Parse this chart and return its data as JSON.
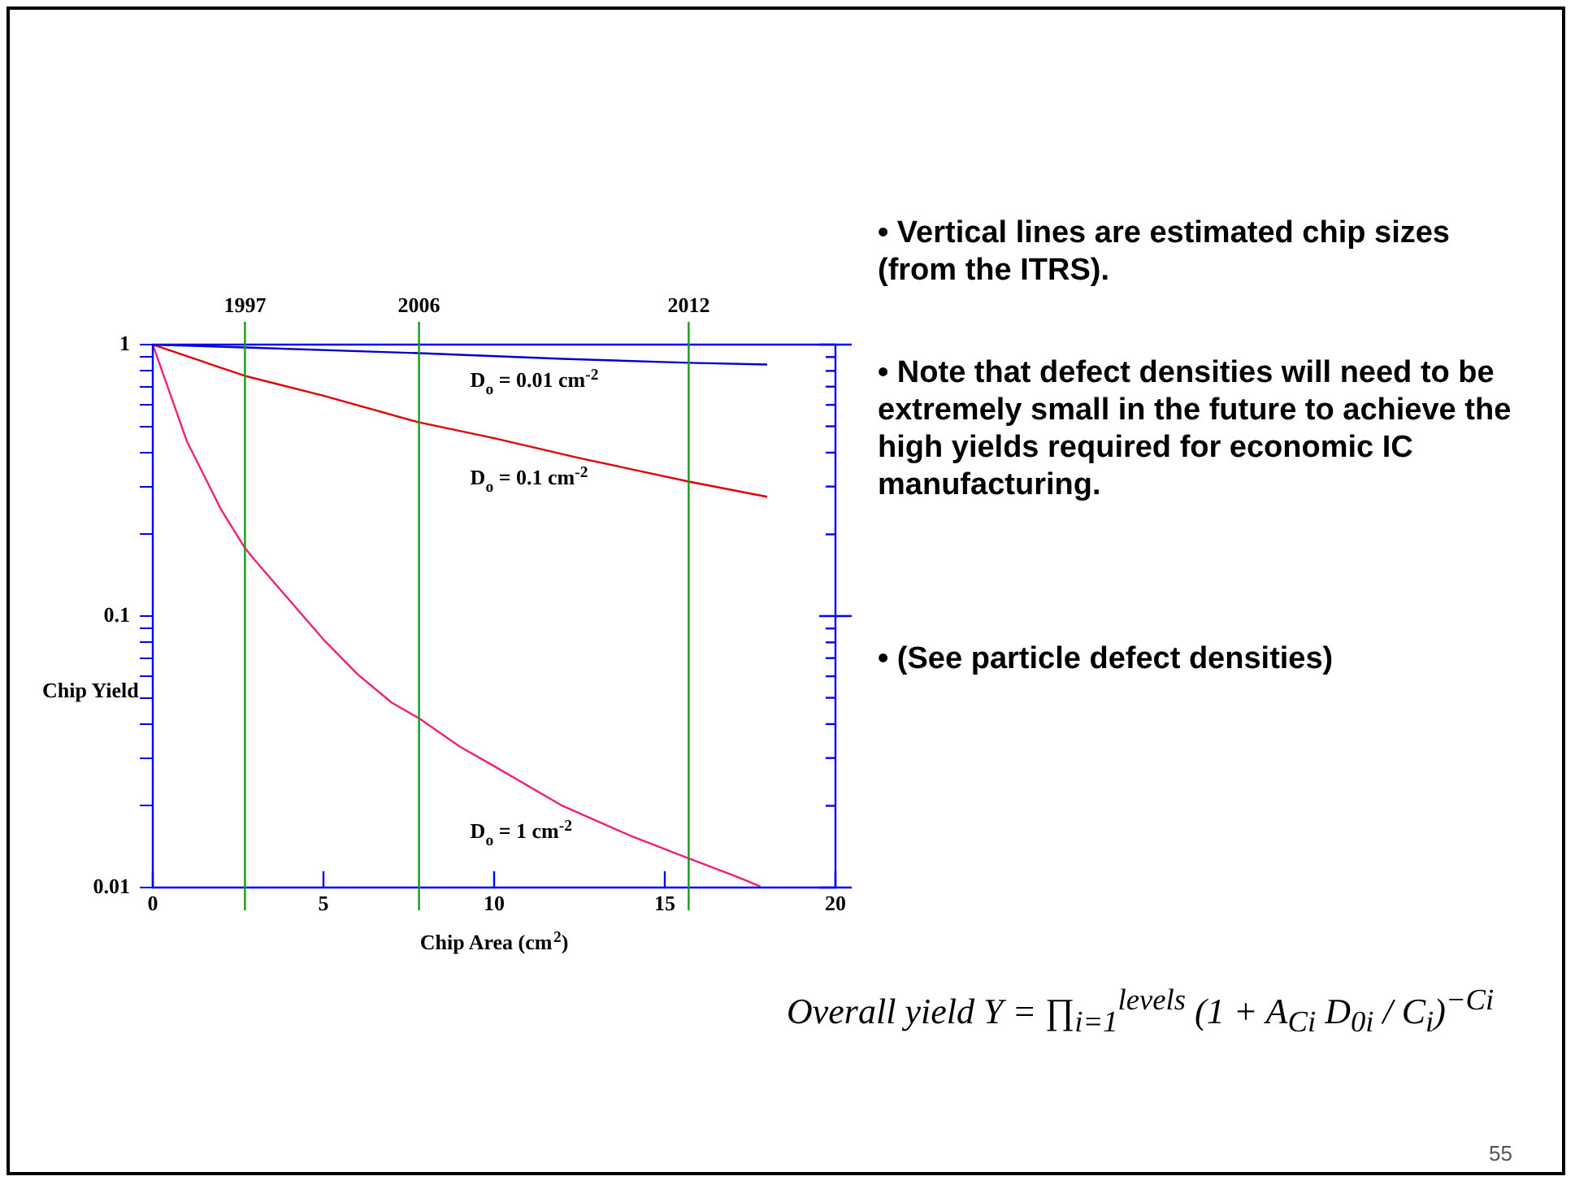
{
  "chart_data": {
    "type": "line",
    "xlabel": "Chip Area (cm$^{2}$)",
    "ylabel": "Chip Yield",
    "log": "y",
    "xlim": [
      0,
      20
    ],
    "xticks": [
      0,
      5,
      10,
      15,
      20
    ],
    "ylim": [
      0.01,
      1
    ],
    "yticks": [
      {
        "value": 0.01,
        "label": "0.01"
      },
      {
        "value": 0.02,
        "label": null
      },
      {
        "value": 0.03,
        "label": null
      },
      {
        "value": 0.04,
        "label": null
      },
      {
        "value": 0.05,
        "label": null
      },
      {
        "value": 0.06,
        "label": null
      },
      {
        "value": 0.07,
        "label": null
      },
      {
        "value": 0.08,
        "label": null
      },
      {
        "value": 0.09,
        "label": null
      },
      {
        "value": 0.1,
        "label": "0.1"
      },
      {
        "value": 0.2,
        "label": null
      },
      {
        "value": 0.3,
        "label": null
      },
      {
        "value": 0.4,
        "label": null
      },
      {
        "value": 0.5,
        "label": null
      },
      {
        "value": 0.6,
        "label": null
      },
      {
        "value": 0.7,
        "label": null
      },
      {
        "value": 0.8,
        "label": null
      },
      {
        "value": 0.9,
        "label": null
      },
      {
        "value": 1,
        "label": "1"
      }
    ],
    "grid": false,
    "legend": false,
    "marker": "none",
    "line_style": "solid",
    "series": [
      {
        "name": "D$_{o}$ = 0.01 cm$^{-2}$",
        "color": "#0000cc",
        "x": [
          0,
          2.7,
          7.8,
          12,
          15.7,
          18
        ],
        "values": [
          1,
          0.976,
          0.93,
          0.886,
          0.857,
          0.845
        ]
      },
      {
        "name": "D$_{o}$ = 0.1 cm$^{-2}$",
        "color": "#e00000",
        "x": [
          0,
          2.7,
          5,
          7.8,
          10,
          12.5,
          15.7,
          18
        ],
        "values": [
          1,
          0.767,
          0.648,
          0.517,
          0.452,
          0.382,
          0.313,
          0.275
        ]
      },
      {
        "name": "D$_{o}$ = 1 cm$^{-2}$",
        "color": "#f0207a",
        "x": [
          0,
          1,
          2,
          2.7,
          3,
          5,
          6,
          7,
          7.8,
          9,
          10,
          12,
          14,
          15.7,
          17,
          17.8
        ],
        "values": [
          1,
          0.44,
          0.247,
          0.178,
          0.16,
          0.082,
          0.061,
          0.048,
          0.042,
          0.033,
          0.028,
          0.02,
          0.0155,
          0.0128,
          0.0111,
          0.0101
        ]
      }
    ],
    "ref_lines": [
      {
        "axis": "x",
        "value": 2.7,
        "color": "#1a9a1a"
      },
      {
        "axis": "x",
        "value": 7.8,
        "color": "#1a9a1a"
      },
      {
        "axis": "x",
        "value": 15.7,
        "color": "#1a9a1a"
      }
    ],
    "annotations": [
      "1997",
      "2006",
      "2012",
      "• Vertical lines are estimated chip sizes (from the ITRS).",
      "• Note that defect densities will need to be extremely small in the future to achieve the high yields required for economic IC manufacturing.",
      "• (See particle defect densities)",
      "Overall yield Y = ∏$_{i=1}$$^{levels}$ (1 + A$_{Ci}$ D$_{0i}$ / C$_{i}$)$^{−Ci}$",
      "55"
    ]
  }
}
